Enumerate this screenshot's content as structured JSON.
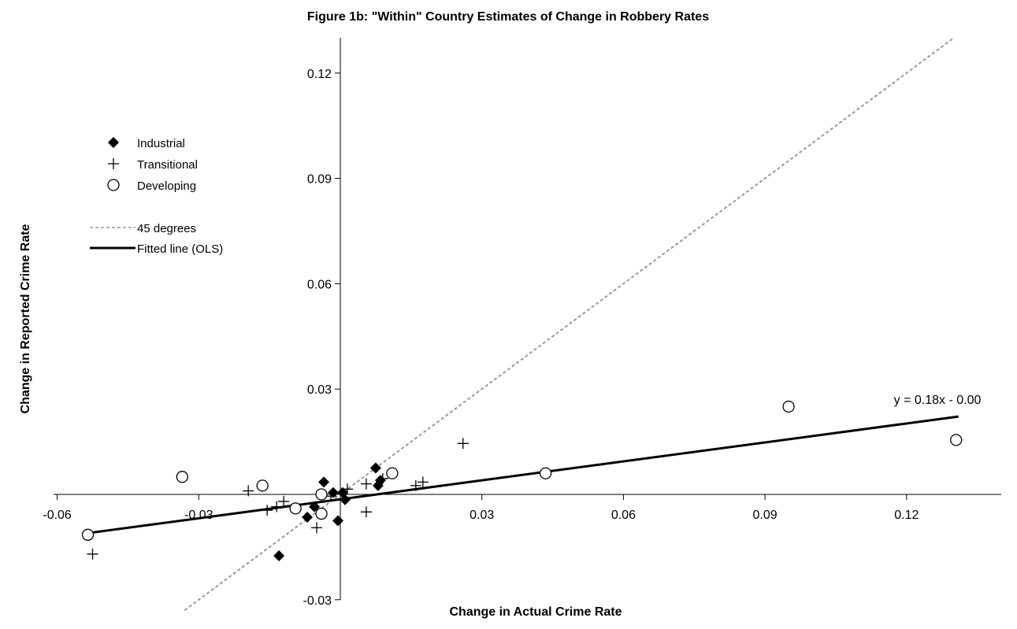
{
  "chart_data": {
    "type": "scatter",
    "title": "Figure 1b: \"Within\" Country Estimates of Change in Robbery Rates",
    "xlabel": "Change in Actual Crime Rate",
    "ylabel": "Change in Reported Crime Rate",
    "xlim": [
      -0.06,
      0.14
    ],
    "ylim": [
      -0.03,
      0.13
    ],
    "x_ticks": [
      -0.06,
      -0.03,
      0.03,
      0.06,
      0.09,
      0.12
    ],
    "x_tick_labels": [
      "-0.06",
      "-0.03",
      "0.03",
      "0.06",
      "0.09",
      "0.12"
    ],
    "y_ticks": [
      -0.03,
      0.03,
      0.06,
      0.09,
      0.12
    ],
    "y_tick_labels": [
      "-0.03",
      "0.03",
      "0.06",
      "0.09",
      "0.12"
    ],
    "grid": false,
    "legend_position": "top-left",
    "series": [
      {
        "name": "Industrial",
        "marker": "diamond",
        "color": "#000000",
        "points": [
          {
            "x": -0.013,
            "y": -0.0175
          },
          {
            "x": -0.007,
            "y": -0.0065
          },
          {
            "x": -0.0055,
            "y": -0.0035
          },
          {
            "x": -0.0035,
            "y": 0.0035
          },
          {
            "x": -0.0015,
            "y": 0.0005
          },
          {
            "x": -0.0005,
            "y": -0.0075
          },
          {
            "x": 0.0005,
            "y": 0.0005
          },
          {
            "x": 0.001,
            "y": -0.0015
          },
          {
            "x": 0.0075,
            "y": 0.0075
          },
          {
            "x": 0.008,
            "y": 0.0025
          },
          {
            "x": 0.0085,
            "y": 0.004
          }
        ]
      },
      {
        "name": "Transitional",
        "marker": "plus",
        "color": "#000000",
        "points": [
          {
            "x": -0.0525,
            "y": -0.017
          },
          {
            "x": -0.0195,
            "y": 0.001
          },
          {
            "x": -0.0155,
            "y": -0.0045
          },
          {
            "x": -0.0135,
            "y": -0.0035
          },
          {
            "x": -0.012,
            "y": -0.002
          },
          {
            "x": -0.005,
            "y": -0.0095
          },
          {
            "x": -0.002,
            "y": -0.0005
          },
          {
            "x": 0.0015,
            "y": 0.0015
          },
          {
            "x": 0.0055,
            "y": -0.005
          },
          {
            "x": 0.0055,
            "y": 0.003
          },
          {
            "x": 0.009,
            "y": 0.0045
          },
          {
            "x": 0.016,
            "y": 0.0025
          },
          {
            "x": 0.0175,
            "y": 0.0035
          },
          {
            "x": 0.026,
            "y": 0.0145
          }
        ]
      },
      {
        "name": "Developing",
        "marker": "circle",
        "color": "#000000",
        "points": [
          {
            "x": -0.0535,
            "y": -0.0115
          },
          {
            "x": -0.0335,
            "y": 0.005
          },
          {
            "x": -0.0165,
            "y": 0.0025
          },
          {
            "x": -0.0095,
            "y": -0.004
          },
          {
            "x": -0.004,
            "y": -0.0055
          },
          {
            "x": -0.004,
            "y": 0.0
          },
          {
            "x": 0.011,
            "y": 0.006
          },
          {
            "x": 0.0435,
            "y": 0.006
          },
          {
            "x": 0.095,
            "y": 0.025
          },
          {
            "x": 0.1305,
            "y": 0.0155
          }
        ]
      }
    ],
    "lines": [
      {
        "name": "45 degrees",
        "style": "dashed",
        "color": "#999999",
        "slope": 1.0,
        "intercept": 0.0,
        "x_range": [
          -0.033,
          0.13
        ]
      },
      {
        "name": "Fitted line (OLS)",
        "style": "solid",
        "color": "#000000",
        "slope": 0.18,
        "intercept": -0.0014,
        "x_range": [
          -0.0535,
          0.131
        ]
      }
    ],
    "annotations": [
      {
        "text": "y = 0.18x - 0.00",
        "x": 0.131,
        "y": 0.0255
      }
    ]
  }
}
